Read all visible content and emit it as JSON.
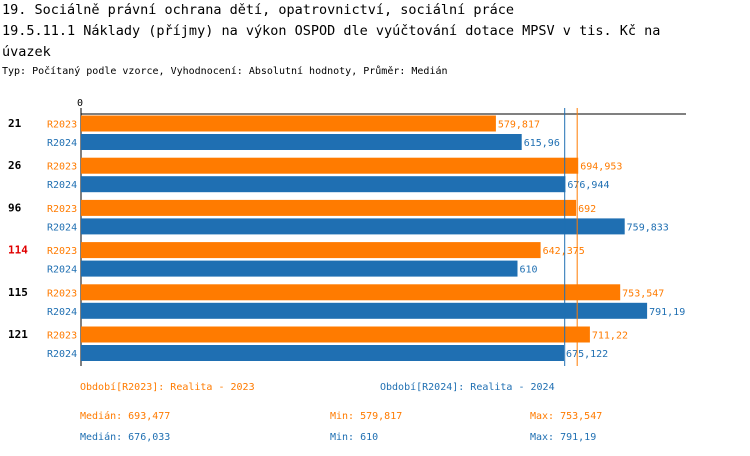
{
  "title_line1": "19. Sociálně právní ochrana dětí, opatrovnictví, sociální práce",
  "title_line2": "19.5.11.1 Náklady (příjmy) na výkon OSPOD dle vyúčtování dotace MPSV v tis. Kč na",
  "title_line3": "úvazek",
  "subtitle": "Typ: Počítaný podle vzorce, Vyhodnocení: Absolutní hodnoty, Průměr: Medián",
  "colors": {
    "r2023": "#ff7b00",
    "r2024": "#1f6fb2",
    "highlight": "#e00000"
  },
  "chart_data": {
    "type": "bar",
    "orientation": "horizontal",
    "axis_zero_label": "0",
    "xlim": [
      0,
      840
    ],
    "categories": [
      "21",
      "26",
      "96",
      "114",
      "115",
      "121"
    ],
    "highlighted_category": "114",
    "series": [
      {
        "name": "R2023",
        "values": [
          579.817,
          694.953,
          692,
          642.375,
          753.547,
          711.22
        ],
        "labels": [
          "579,817",
          "694,953",
          "692",
          "642,375",
          "753,547",
          "711,22"
        ]
      },
      {
        "name": "R2024",
        "values": [
          615.96,
          676.944,
          759.833,
          610,
          791.19,
          675.122
        ],
        "labels": [
          "615,96",
          "676,944",
          "759,833",
          "610",
          "791,19",
          "675,122"
        ]
      }
    ],
    "median_lines": [
      {
        "series": "R2023",
        "value": 693.477
      },
      {
        "series": "R2024",
        "value": 676.033
      }
    ]
  },
  "legend": {
    "r2023": "Období[R2023]: Realita - 2023",
    "r2024": "Období[R2024]: Realita - 2024"
  },
  "stats": {
    "r2023": {
      "median": "Medián: 693,477",
      "min": "Min: 579,817",
      "max": "Max: 753,547"
    },
    "r2024": {
      "median": "Medián: 676,033",
      "min": "Min: 610",
      "max": "Max: 791,19"
    }
  }
}
